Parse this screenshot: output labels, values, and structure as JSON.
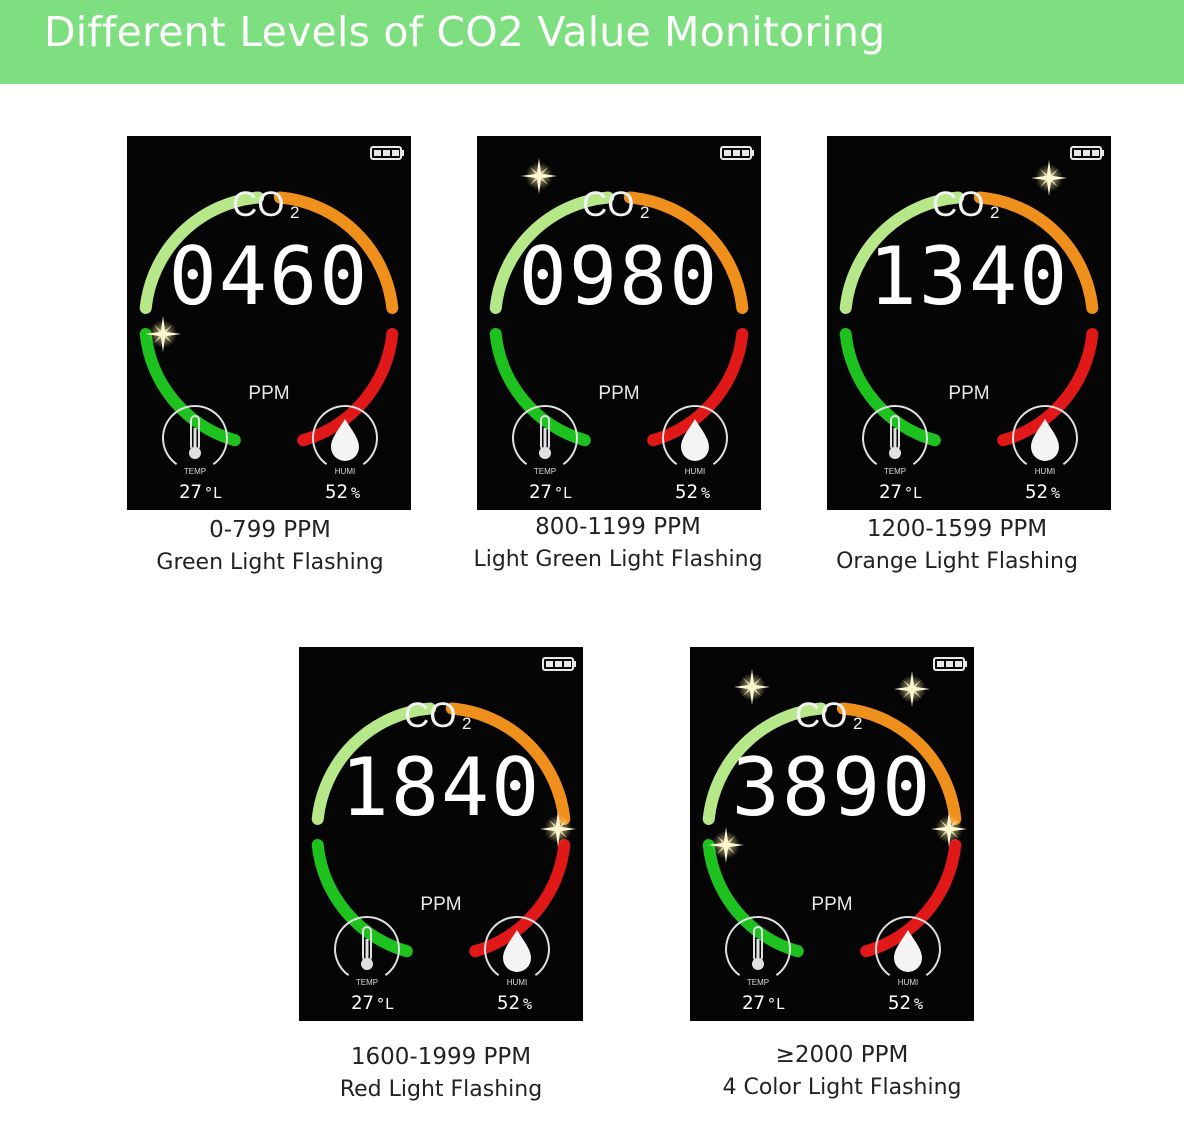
{
  "banner": {
    "title": "Different Levels of CO2 Value Monitoring"
  },
  "panels": [
    {
      "reading": "0460",
      "co2_label": "CO",
      "co2_sub": "2",
      "unit": "PPM",
      "temp_label": "TEMP",
      "temp_value": "27",
      "temp_unit": "°L",
      "humi_label": "HUMI",
      "humi_value": "52",
      "humi_unit": "%",
      "range": "0-799 PPM",
      "light": "Green Light Flashing",
      "flashing_segments": [
        "green"
      ]
    },
    {
      "reading": "0980",
      "co2_label": "CO",
      "co2_sub": "2",
      "unit": "PPM",
      "temp_label": "TEMP",
      "temp_value": "27",
      "temp_unit": "°L",
      "humi_label": "HUMI",
      "humi_value": "52",
      "humi_unit": "%",
      "range": "800-1199 PPM",
      "light": "Light Green Light Flashing",
      "flashing_segments": [
        "light-green"
      ]
    },
    {
      "reading": "1340",
      "co2_label": "CO",
      "co2_sub": "2",
      "unit": "PPM",
      "temp_label": "TEMP",
      "temp_value": "27",
      "temp_unit": "°L",
      "humi_label": "HUMI",
      "humi_value": "52",
      "humi_unit": "%",
      "range": "1200-1599 PPM",
      "light": "Orange Light Flashing",
      "flashing_segments": [
        "orange"
      ]
    },
    {
      "reading": "1840",
      "co2_label": "CO",
      "co2_sub": "2",
      "unit": "PPM",
      "temp_label": "TEMP",
      "temp_value": "27",
      "temp_unit": "°L",
      "humi_label": "HUMI",
      "humi_value": "52",
      "humi_unit": "%",
      "range": "1600-1999 PPM",
      "light": "Red Light Flashing",
      "flashing_segments": [
        "red"
      ]
    },
    {
      "reading": "3890",
      "co2_label": "CO",
      "co2_sub": "2",
      "unit": "PPM",
      "temp_label": "TEMP",
      "temp_value": "27",
      "temp_unit": "°L",
      "humi_label": "HUMI",
      "humi_value": "52",
      "humi_unit": "%",
      "range": "≥2000 PPM",
      "light": "4 Color Light Flashing",
      "flashing_segments": [
        "green",
        "light-green",
        "orange",
        "red"
      ]
    }
  ],
  "colors": {
    "banner": "#7ddf7f",
    "green": "#1ec21e",
    "light_green": "#b6e88a",
    "orange": "#f0901c",
    "red": "#e01818",
    "display_bg": "#050505"
  },
  "icons": [
    "battery-icon",
    "thermometer-icon",
    "water-drop-icon",
    "sparkle-icon"
  ]
}
